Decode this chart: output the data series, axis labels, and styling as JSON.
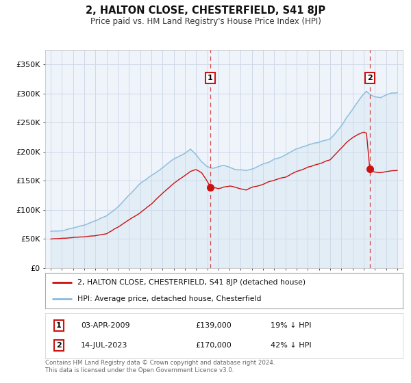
{
  "title": "2, HALTON CLOSE, CHESTERFIELD, S41 8JP",
  "subtitle": "Price paid vs. HM Land Registry's House Price Index (HPI)",
  "hpi_color": "#88bbdd",
  "hpi_fill_color": "#cce0f0",
  "price_color": "#cc1111",
  "point1_x": 2009.25,
  "point1_y": 139000,
  "point2_x": 2023.54,
  "point2_y": 170000,
  "legend_house": "2, HALTON CLOSE, CHESTERFIELD, S41 8JP (detached house)",
  "legend_hpi": "HPI: Average price, detached house, Chesterfield",
  "footer": "Contains HM Land Registry data © Crown copyright and database right 2024.\nThis data is licensed under the Open Government Licence v3.0.",
  "ylim": [
    0,
    375000
  ],
  "xlim_start": 1994.5,
  "xlim_end": 2026.5,
  "yticks": [
    0,
    50000,
    100000,
    150000,
    200000,
    250000,
    300000,
    350000
  ],
  "ytick_labels": [
    "£0",
    "£50K",
    "£100K",
    "£150K",
    "£200K",
    "£250K",
    "£300K",
    "£350K"
  ],
  "xticks": [
    1995,
    1996,
    1997,
    1998,
    1999,
    2000,
    2001,
    2002,
    2003,
    2004,
    2005,
    2006,
    2007,
    2008,
    2009,
    2010,
    2011,
    2012,
    2013,
    2014,
    2015,
    2016,
    2017,
    2018,
    2019,
    2020,
    2021,
    2022,
    2023,
    2024,
    2025,
    2026
  ],
  "background_color": "#ffffff",
  "grid_color": "#d0d8e8",
  "chart_bg_color": "#eef4fa"
}
